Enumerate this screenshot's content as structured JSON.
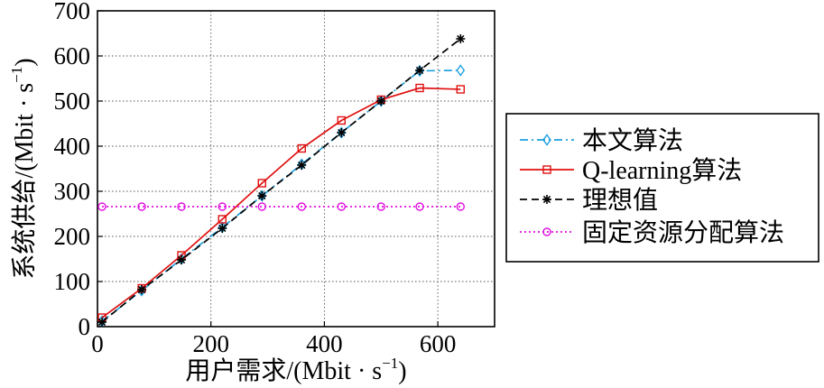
{
  "chart_data": {
    "type": "line",
    "xlabel": "用户需求/(Mbit · s",
    "xlabel_sup": "−1",
    "xlabel_close": ")",
    "ylabel": "系统供给/(Mbit · s",
    "ylabel_sup": "−1",
    "ylabel_close": ")",
    "xlim": [
      0,
      700
    ],
    "ylim": [
      0,
      700
    ],
    "xticks": [
      0,
      200,
      400,
      600
    ],
    "yticks": [
      0,
      100,
      200,
      300,
      400,
      500,
      600,
      700
    ],
    "grid": true,
    "legend_position": "right",
    "series": [
      {
        "name": "本文算法",
        "color": "#1fa0e0",
        "line_style": "dash-dot",
        "marker": "diamond",
        "x": [
          8,
          78,
          148,
          220,
          290,
          360,
          430,
          500,
          568,
          640
        ],
        "y": [
          12,
          80,
          150,
          220,
          290,
          360,
          430,
          500,
          567,
          568
        ]
      },
      {
        "name": "Q-learning算法",
        "color": "#e01010",
        "line_style": "solid",
        "marker": "square",
        "x": [
          8,
          78,
          148,
          220,
          290,
          360,
          430,
          500,
          568,
          640
        ],
        "y": [
          20,
          85,
          158,
          238,
          318,
          395,
          457,
          503,
          529,
          526
        ]
      },
      {
        "name": "理想值",
        "color": "#000000",
        "line_style": "dashed",
        "marker": "star",
        "x": [
          8,
          78,
          148,
          220,
          290,
          360,
          430,
          500,
          568,
          640
        ],
        "y": [
          10,
          82,
          148,
          218,
          290,
          358,
          430,
          500,
          568,
          638
        ]
      },
      {
        "name": "固定资源分配算法",
        "color": "#e010e0",
        "line_style": "dotted",
        "marker": "circle",
        "x": [
          8,
          78,
          148,
          220,
          290,
          360,
          430,
          500,
          568,
          640
        ],
        "y": [
          266,
          266,
          266,
          266,
          266,
          266,
          266,
          266,
          266,
          266
        ]
      }
    ]
  }
}
